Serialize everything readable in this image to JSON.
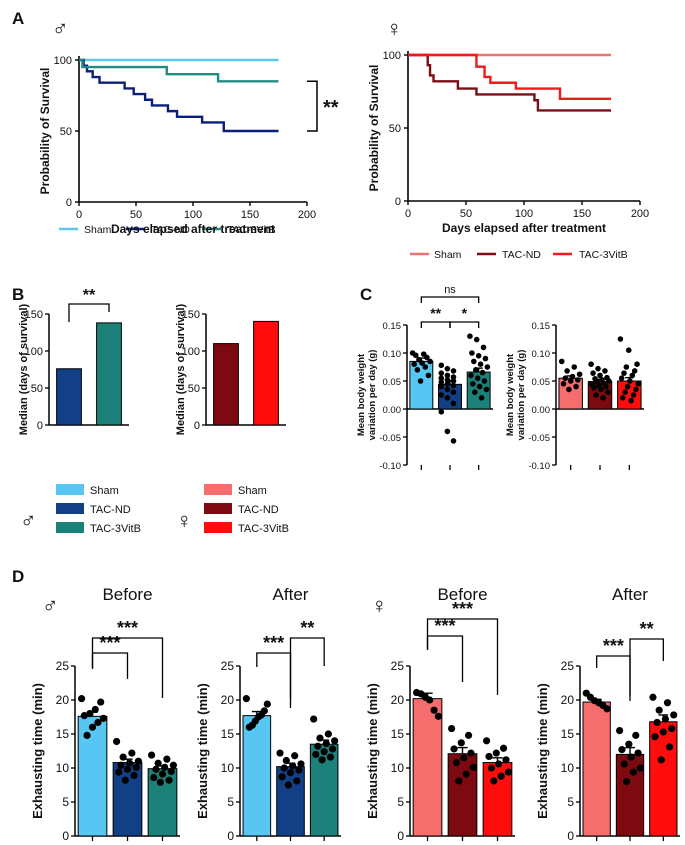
{
  "panel_letters": {
    "A": "A",
    "B": "B",
    "C": "C",
    "D": "D"
  },
  "sex_symbols": {
    "male": "♂",
    "female": "♀"
  },
  "colors": {
    "sham_m": "#5cc8ee",
    "nd_m": "#0b1f7a",
    "vitb_m": "#238c82",
    "sham_f": "#f07070",
    "nd_f": "#7a0e14",
    "vitb_f": "#f01a1a",
    "nd_m_bar": "#123f86",
    "vitb_m_bar": "#1c8279",
    "sham_f_bar": "#f56d6d",
    "nd_f_bar": "#7d0a10",
    "vitb_f_bar": "#ff0d0d",
    "sham_m_bar": "#58c6f2"
  },
  "labels": {
    "survival_ylabel": "Probability of Survival",
    "survival_xlabel": "Days elapsed after treatment",
    "median_ylabel": "Median (days of survival)",
    "weight_ylabel_1": "Mean body weight",
    "weight_ylabel_2": "variation per day (g)",
    "exh_ylabel": "Exhausting time (min)",
    "before": "Before",
    "after": "After"
  },
  "legend_A_male": [
    "Sham",
    "TAC-ND",
    "TAC-3VitB"
  ],
  "legend_A_female": [
    "Sham",
    "TAC-ND",
    "TAC-3VitB"
  ],
  "legend_B_male": [
    "Sham",
    "TAC-ND",
    "TAC-3VitB"
  ],
  "legend_B_female": [
    "Sham",
    "TAC-ND",
    "TAC-3VitB"
  ],
  "chart_data": [
    {
      "id": "A_male",
      "type": "line",
      "subtype": "kaplan-meier",
      "xlabel": "Days elapsed after treatment",
      "ylabel": "Probability of Survival",
      "xlim": [
        0,
        200
      ],
      "ylim": [
        0,
        100
      ],
      "xticks": [
        0,
        50,
        100,
        150,
        200
      ],
      "yticks": [
        0,
        50,
        100
      ],
      "significance": "**",
      "series": [
        {
          "name": "Sham",
          "steps": [
            [
              0,
              100
            ],
            [
              175,
              100
            ]
          ]
        },
        {
          "name": "TAC-ND",
          "steps": [
            [
              0,
              100
            ],
            [
              4,
              96
            ],
            [
              7,
              92
            ],
            [
              12,
              88
            ],
            [
              18,
              84
            ],
            [
              40,
              80
            ],
            [
              48,
              76
            ],
            [
              58,
              72
            ],
            [
              64,
              68
            ],
            [
              78,
              64
            ],
            [
              86,
              60
            ],
            [
              108,
              56
            ],
            [
              127,
              50
            ],
            [
              175,
              50
            ]
          ]
        },
        {
          "name": "TAC-3VitB",
          "steps": [
            [
              0,
              100
            ],
            [
              3,
              95
            ],
            [
              77,
              90
            ],
            [
              122,
              85
            ],
            [
              175,
              85
            ]
          ]
        }
      ]
    },
    {
      "id": "A_female",
      "type": "line",
      "subtype": "kaplan-meier",
      "xlabel": "Days elapsed after treatment",
      "ylabel": "Probability of Survival",
      "xlim": [
        0,
        200
      ],
      "ylim": [
        0,
        100
      ],
      "xticks": [
        0,
        50,
        100,
        150,
        200
      ],
      "yticks": [
        0,
        50,
        100
      ],
      "series": [
        {
          "name": "Sham",
          "steps": [
            [
              0,
              100
            ],
            [
              175,
              100
            ]
          ]
        },
        {
          "name": "TAC-ND",
          "steps": [
            [
              0,
              100
            ],
            [
              17,
              93
            ],
            [
              19,
              86
            ],
            [
              22,
              82
            ],
            [
              43,
              77
            ],
            [
              59,
              73
            ],
            [
              109,
              69
            ],
            [
              112,
              62
            ],
            [
              175,
              62
            ]
          ]
        },
        {
          "name": "TAC-3VitB",
          "steps": [
            [
              0,
              100
            ],
            [
              59,
              92
            ],
            [
              66,
              85
            ],
            [
              71,
              81
            ],
            [
              93,
              77
            ],
            [
              131,
              70
            ],
            [
              175,
              70
            ]
          ]
        }
      ]
    },
    {
      "id": "B_male",
      "type": "bar",
      "ylabel": "Median (days of survival)",
      "categories": [
        "TAC-ND",
        "TAC-3VitB"
      ],
      "values": [
        76,
        138
      ],
      "ylim": [
        0,
        150
      ],
      "yticks": [
        0,
        50,
        100,
        150
      ],
      "significance": "**"
    },
    {
      "id": "B_female",
      "type": "bar",
      "ylabel": "Median (days of survival)",
      "categories": [
        "TAC-ND",
        "TAC-3VitB"
      ],
      "values": [
        110,
        140
      ],
      "ylim": [
        0,
        150
      ],
      "yticks": [
        0,
        50,
        100,
        150
      ]
    },
    {
      "id": "C_male",
      "type": "bar",
      "ylabel": "Mean body weight variation per day (g)",
      "categories": [
        "Sham",
        "TAC-ND",
        "TAC-3VitB"
      ],
      "values": [
        0.085,
        0.044,
        0.066
      ],
      "errors": [
        0.006,
        0.007,
        0.007
      ],
      "ylim": [
        -0.1,
        0.15
      ],
      "yticks": [
        -0.1,
        -0.05,
        0.0,
        0.05,
        0.1,
        0.15
      ],
      "tick_format": "0.00",
      "significance": [
        {
          "pair": [
            0,
            1
          ],
          "label": "**"
        },
        {
          "pair": [
            1,
            2
          ],
          "label": "*"
        },
        {
          "pair": [
            0,
            2
          ],
          "label": "ns"
        }
      ],
      "points": [
        [
          0.1,
          0.098,
          0.096,
          0.092,
          0.088,
          0.085,
          0.082,
          0.08,
          0.075,
          0.07,
          0.06,
          0.05
        ],
        [
          0.078,
          0.072,
          0.068,
          0.064,
          0.06,
          0.057,
          0.055,
          0.052,
          0.05,
          0.048,
          0.045,
          0.042,
          0.04,
          0.035,
          0.03,
          0.025,
          0.02,
          0.01,
          -0.005,
          -0.04,
          -0.057
        ],
        [
          0.13,
          0.124,
          0.11,
          0.1,
          0.095,
          0.09,
          0.085,
          0.08,
          0.075,
          0.07,
          0.065,
          0.06,
          0.055,
          0.05,
          0.045,
          0.04,
          0.035,
          0.03,
          0.02
        ]
      ]
    },
    {
      "id": "C_female",
      "type": "bar",
      "ylabel": "Mean body weight variation per day (g)",
      "categories": [
        "Sham",
        "TAC-ND",
        "TAC-3VitB"
      ],
      "values": [
        0.055,
        0.049,
        0.05
      ],
      "errors": [
        0.004,
        0.004,
        0.006
      ],
      "ylim": [
        -0.1,
        0.15
      ],
      "yticks": [
        -0.1,
        -0.05,
        0.0,
        0.05,
        0.1,
        0.15
      ],
      "tick_format": "0.00",
      "points": [
        [
          0.085,
          0.075,
          0.068,
          0.062,
          0.058,
          0.055,
          0.052,
          0.05,
          0.045,
          0.04,
          0.035
        ],
        [
          0.08,
          0.072,
          0.068,
          0.064,
          0.06,
          0.056,
          0.054,
          0.052,
          0.05,
          0.048,
          0.046,
          0.044,
          0.042,
          0.04,
          0.038,
          0.035,
          0.03,
          0.025,
          0.02
        ],
        [
          0.125,
          0.105,
          0.08,
          0.075,
          0.068,
          0.064,
          0.06,
          0.055,
          0.05,
          0.045,
          0.04,
          0.035,
          0.03,
          0.025,
          0.02,
          0.015
        ]
      ]
    },
    {
      "id": "D_male_before",
      "type": "bar",
      "title": "Before",
      "ylabel": "Exhausting time (min)",
      "categories": [
        "Sham",
        "TAC-ND",
        "TAC-3VitB"
      ],
      "values": [
        17.6,
        10.8,
        9.9
      ],
      "errors": [
        0.6,
        0.5,
        0.4
      ],
      "ylim": [
        0,
        25
      ],
      "yticks": [
        0,
        5,
        10,
        15,
        20,
        25
      ],
      "significance": [
        {
          "pair": [
            0,
            1
          ],
          "label": "***"
        },
        {
          "pair": [
            0,
            2
          ],
          "label": "***"
        }
      ],
      "points": [
        [
          20.2,
          19.7,
          18.6,
          18.0,
          17.7,
          17.3,
          16.7,
          16.0,
          14.8
        ],
        [
          13.9,
          12.2,
          11.6,
          11.0,
          10.7,
          10.4,
          10.1,
          9.8,
          9.4,
          8.9,
          8.2
        ],
        [
          11.9,
          11.3,
          10.7,
          10.4,
          10.1,
          9.8,
          9.5,
          9.1,
          8.6,
          8.2,
          7.9
        ]
      ]
    },
    {
      "id": "D_male_after",
      "type": "bar",
      "title": "After",
      "ylabel": "Exhausting time (min)",
      "categories": [
        "Sham",
        "TAC-ND",
        "TAC-3VitB"
      ],
      "values": [
        17.7,
        10.2,
        13.5
      ],
      "errors": [
        0.6,
        0.5,
        0.6
      ],
      "ylim": [
        0,
        25
      ],
      "yticks": [
        0,
        5,
        10,
        15,
        20,
        25
      ],
      "significance": [
        {
          "pair": [
            0,
            1
          ],
          "label": "***"
        },
        {
          "pair": [
            1,
            2
          ],
          "label": "**"
        }
      ],
      "points": [
        [
          20.2,
          19.4,
          18.4,
          17.8,
          17.5,
          16.9,
          16.3,
          16.0
        ],
        [
          12.2,
          11.8,
          11.1,
          10.6,
          10.3,
          10.0,
          9.7,
          9.3,
          8.7,
          8.1,
          7.5
        ],
        [
          17.2,
          15.0,
          14.4,
          14.0,
          13.6,
          13.2,
          12.8,
          12.4,
          12.0,
          11.6,
          11.2
        ]
      ]
    },
    {
      "id": "D_female_before",
      "type": "bar",
      "title": "Before",
      "ylabel": "Exhausting time (min)",
      "categories": [
        "Sham",
        "TAC-ND",
        "TAC-3VitB"
      ],
      "values": [
        20.2,
        12.1,
        10.8
      ],
      "errors": [
        0.8,
        0.9,
        0.7
      ],
      "ylim": [
        0,
        25
      ],
      "yticks": [
        0,
        5,
        10,
        15,
        20,
        25
      ],
      "significance": [
        {
          "pair": [
            0,
            1
          ],
          "label": "***"
        },
        {
          "pair": [
            0,
            2
          ],
          "label": "***"
        }
      ],
      "points": [
        [
          21.1,
          20.9,
          20.4,
          20.0,
          18.5,
          17.6
        ],
        [
          15.8,
          14.8,
          13.7,
          12.8,
          12.2,
          11.5,
          10.8,
          10.1,
          9.1,
          8.1
        ],
        [
          14.0,
          12.9,
          12.2,
          11.7,
          11.2,
          10.6,
          10.0,
          9.4,
          8.8,
          8.1
        ]
      ]
    },
    {
      "id": "D_female_after",
      "type": "bar",
      "title": "After",
      "ylabel": "Exhausting time (min)",
      "categories": [
        "Sham",
        "TAC-ND",
        "TAC-3VitB"
      ],
      "values": [
        19.7,
        12.0,
        16.8
      ],
      "errors": [
        0.4,
        1.0,
        1.0
      ],
      "ylim": [
        0,
        25
      ],
      "yticks": [
        0,
        5,
        10,
        15,
        20,
        25
      ],
      "significance": [
        {
          "pair": [
            0,
            1
          ],
          "label": "***"
        },
        {
          "pair": [
            1,
            2
          ],
          "label": "**"
        }
      ],
      "points": [
        [
          21.0,
          20.4,
          19.9,
          19.6,
          19.2,
          18.7
        ],
        [
          15.5,
          14.8,
          13.5,
          12.7,
          12.2,
          11.6,
          10.6,
          10.0,
          9.4,
          8.0
        ],
        [
          20.4,
          19.6,
          18.5,
          17.8,
          17.2,
          16.7,
          15.8,
          15.3,
          14.6,
          13.1,
          11.2
        ]
      ]
    }
  ]
}
